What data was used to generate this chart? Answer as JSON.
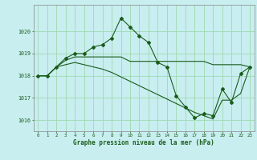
{
  "title": "Graphe pression niveau de la mer (hPa)",
  "background_color": "#c8eef0",
  "grid_color": "#a0d8b0",
  "line_color": "#1a5c1a",
  "xlim": [
    -0.5,
    23.5
  ],
  "ylim": [
    1015.5,
    1021.2
  ],
  "yticks": [
    1016,
    1017,
    1018,
    1019,
    1020
  ],
  "xticks": [
    0,
    1,
    2,
    3,
    4,
    5,
    6,
    7,
    8,
    9,
    10,
    11,
    12,
    13,
    14,
    15,
    16,
    17,
    18,
    19,
    20,
    21,
    22,
    23
  ],
  "series1_x": [
    0,
    1,
    2,
    3,
    4,
    5,
    6,
    7,
    8,
    9,
    10,
    11,
    12,
    13,
    14,
    15,
    16,
    17,
    18,
    19,
    20,
    21,
    22,
    23
  ],
  "series1_y": [
    1018.0,
    1018.0,
    1018.4,
    1018.8,
    1019.0,
    1019.0,
    1019.3,
    1019.4,
    1019.7,
    1020.6,
    1020.2,
    1019.8,
    1019.5,
    1018.6,
    1018.4,
    1017.1,
    1016.6,
    1016.1,
    1016.3,
    1016.2,
    1017.4,
    1016.8,
    1018.1,
    1018.4
  ],
  "series2_x": [
    0,
    1,
    2,
    3,
    4,
    5,
    6,
    7,
    8,
    9,
    10,
    11,
    12,
    13,
    14,
    15,
    16,
    17,
    18,
    19,
    20,
    21,
    22,
    23
  ],
  "series2_y": [
    1018.0,
    1018.0,
    1018.4,
    1018.7,
    1018.85,
    1018.85,
    1018.85,
    1018.85,
    1018.85,
    1018.85,
    1018.65,
    1018.65,
    1018.65,
    1018.65,
    1018.65,
    1018.65,
    1018.65,
    1018.65,
    1018.65,
    1018.5,
    1018.5,
    1018.5,
    1018.5,
    1018.4
  ],
  "series3_x": [
    0,
    1,
    2,
    3,
    4,
    5,
    6,
    7,
    8,
    9,
    10,
    11,
    12,
    13,
    14,
    15,
    16,
    17,
    18,
    19,
    20,
    21,
    22,
    23
  ],
  "series3_y": [
    1018.0,
    1018.0,
    1018.4,
    1018.5,
    1018.6,
    1018.5,
    1018.4,
    1018.3,
    1018.15,
    1017.95,
    1017.75,
    1017.55,
    1017.35,
    1017.15,
    1016.95,
    1016.75,
    1016.55,
    1016.35,
    1016.2,
    1016.05,
    1016.9,
    1016.9,
    1017.2,
    1018.4
  ]
}
